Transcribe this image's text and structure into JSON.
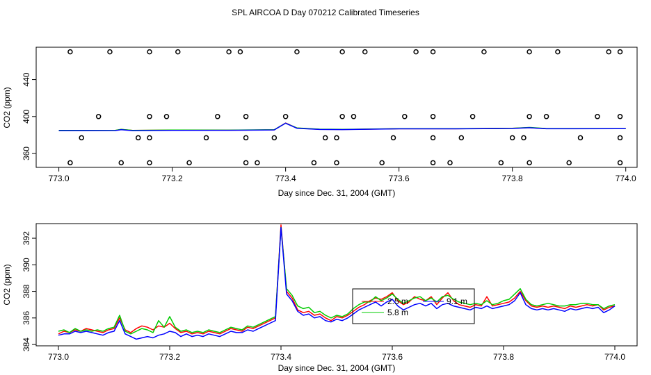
{
  "figure_title": "SPL AIRCOA D  Day 070212  Calibrated Timeseries",
  "colors": {
    "red": "#ff0000",
    "green": "#00cc00",
    "blue": "#0000ff",
    "black": "#000000"
  },
  "chart_data": [
    {
      "type": "scatter",
      "title": "",
      "xlabel": "Day since Dec. 31, 2004 (GMT)",
      "ylabel": "CO2 (ppm)",
      "xlim": [
        772.96,
        774.02
      ],
      "ylim": [
        345,
        475
      ],
      "xticks": [
        "773.0",
        "773.2",
        "773.4",
        "773.6",
        "773.8",
        "774.0"
      ],
      "yticks": [
        "360",
        "400",
        "440"
      ],
      "grid": false,
      "markers": {
        "name": "",
        "x": [
          773.02,
          773.09,
          773.16,
          773.21,
          773.3,
          773.32,
          773.42,
          773.5,
          773.54,
          773.63,
          773.66,
          773.75,
          773.83,
          773.88,
          773.97,
          773.99,
          773.07,
          773.16,
          773.19,
          773.28,
          773.33,
          773.4,
          773.5,
          773.52,
          773.61,
          773.66,
          773.73,
          773.83,
          773.86,
          773.95,
          773.99,
          773.04,
          773.14,
          773.16,
          773.26,
          773.33,
          773.38,
          773.47,
          773.49,
          773.59,
          773.66,
          773.71,
          773.8,
          773.82,
          773.92,
          773.99,
          773.02,
          773.11,
          773.16,
          773.23,
          773.33,
          773.35,
          773.45,
          773.49,
          773.57,
          773.66,
          773.69,
          773.78,
          773.83,
          773.9,
          773.99
        ],
        "y": [
          470,
          470,
          470,
          470,
          470,
          470,
          470,
          470,
          470,
          470,
          470,
          470,
          470,
          470,
          470,
          470,
          400,
          400,
          400,
          400,
          400,
          400,
          400,
          400,
          400,
          400,
          400,
          400,
          400,
          400,
          400,
          377,
          377,
          377,
          377,
          377,
          377,
          377,
          377,
          377,
          377,
          377,
          377,
          377,
          377,
          377,
          350,
          350,
          350,
          350,
          350,
          350,
          350,
          350,
          350,
          350,
          350,
          350,
          350,
          350,
          350
        ]
      },
      "series": [
        {
          "color": "#ff0000",
          "x": [
            773.0,
            773.1,
            773.11,
            773.13,
            773.2,
            773.3,
            773.38,
            773.4,
            773.42,
            773.46,
            773.5,
            773.6,
            773.7,
            773.8,
            773.83,
            773.86,
            773.9,
            774.0
          ],
          "values": [
            384.8,
            385.0,
            386.0,
            385.0,
            385.3,
            385.2,
            385.6,
            393.0,
            387.5,
            386.2,
            386.0,
            386.8,
            386.8,
            387.2,
            388.0,
            386.9,
            386.9,
            386.9
          ]
        },
        {
          "color": "#00cc00",
          "x": [
            773.0,
            773.1,
            773.11,
            773.13,
            773.2,
            773.3,
            773.38,
            773.4,
            773.42,
            773.46,
            773.5,
            773.6,
            773.7,
            773.8,
            773.83,
            773.86,
            773.9,
            774.0
          ],
          "values": [
            385.0,
            385.1,
            386.2,
            385.0,
            385.4,
            385.3,
            385.7,
            392.8,
            387.7,
            386.3,
            386.1,
            386.9,
            386.9,
            387.3,
            388.2,
            387.0,
            387.0,
            387.0
          ]
        },
        {
          "color": "#0000ff",
          "x": [
            773.0,
            773.1,
            773.11,
            773.13,
            773.2,
            773.3,
            773.38,
            773.4,
            773.42,
            773.46,
            773.5,
            773.6,
            773.7,
            773.8,
            773.83,
            773.86,
            773.9,
            774.0
          ],
          "values": [
            384.7,
            384.8,
            385.8,
            384.6,
            385.0,
            385.1,
            385.5,
            392.8,
            387.3,
            386.0,
            385.9,
            386.7,
            386.7,
            387.1,
            387.9,
            386.8,
            386.8,
            386.9
          ]
        }
      ]
    },
    {
      "type": "line",
      "title": "",
      "xlabel": "Day since Dec. 31, 2004 (GMT)",
      "ylabel": "CO2 (ppm)",
      "xlim": [
        772.96,
        774.04
      ],
      "ylim": [
        383.9,
        393.1
      ],
      "xticks": [
        "773.0",
        "773.2",
        "773.4",
        "773.6",
        "773.8",
        "774.0"
      ],
      "yticks": [
        "384",
        "386",
        "388",
        "390",
        "392"
      ],
      "grid": false,
      "legend": {
        "position": "center-right",
        "labels": [
          "2.5 m",
          "5.8 m",
          "9.1 m"
        ]
      },
      "x": [
        773.0,
        773.01,
        773.02,
        773.03,
        773.04,
        773.05,
        773.06,
        773.07,
        773.08,
        773.09,
        773.1,
        773.11,
        773.12,
        773.13,
        773.14,
        773.15,
        773.16,
        773.17,
        773.18,
        773.19,
        773.2,
        773.21,
        773.22,
        773.23,
        773.24,
        773.25,
        773.26,
        773.27,
        773.28,
        773.29,
        773.3,
        773.31,
        773.32,
        773.33,
        773.34,
        773.35,
        773.36,
        773.37,
        773.38,
        773.39,
        773.4,
        773.41,
        773.42,
        773.43,
        773.44,
        773.45,
        773.46,
        773.47,
        773.48,
        773.49,
        773.5,
        773.51,
        773.52,
        773.53,
        773.54,
        773.55,
        773.56,
        773.57,
        773.58,
        773.59,
        773.6,
        773.61,
        773.62,
        773.63,
        773.64,
        773.65,
        773.66,
        773.67,
        773.68,
        773.69,
        773.7,
        773.71,
        773.72,
        773.73,
        773.74,
        773.75,
        773.76,
        773.77,
        773.78,
        773.79,
        773.8,
        773.81,
        773.82,
        773.83,
        773.84,
        773.85,
        773.86,
        773.87,
        773.88,
        773.89,
        773.9,
        773.91,
        773.92,
        773.93,
        773.94,
        773.95,
        773.96,
        773.97,
        773.98,
        773.99,
        774.0
      ],
      "series": [
        {
          "name": "2.5 m",
          "color": "#ff0000",
          "values": [
            384.8,
            385.0,
            384.9,
            385.1,
            385.0,
            385.2,
            385.1,
            385.0,
            384.9,
            385.1,
            385.2,
            386.0,
            385.1,
            384.9,
            385.2,
            385.4,
            385.3,
            385.1,
            385.4,
            385.3,
            385.6,
            385.2,
            384.9,
            385.0,
            384.8,
            384.9,
            384.8,
            385.0,
            384.9,
            384.8,
            385.0,
            385.2,
            385.1,
            385.0,
            385.3,
            385.2,
            385.4,
            385.6,
            385.8,
            386.0,
            393.0,
            388.0,
            387.5,
            386.6,
            386.4,
            386.5,
            386.2,
            386.3,
            386.0,
            385.8,
            386.1,
            386.0,
            386.2,
            386.5,
            386.8,
            387.0,
            387.3,
            387.5,
            387.4,
            387.6,
            387.9,
            387.3,
            387.0,
            387.2,
            387.6,
            387.4,
            387.3,
            387.6,
            387.0,
            387.5,
            387.9,
            387.3,
            387.0,
            386.9,
            386.8,
            387.0,
            386.9,
            387.6,
            386.9,
            387.0,
            387.1,
            387.2,
            387.5,
            388.0,
            387.3,
            386.9,
            386.8,
            386.9,
            386.8,
            386.9,
            386.8,
            386.7,
            386.9,
            386.8,
            386.9,
            387.0,
            386.9,
            387.0,
            386.6,
            386.8,
            386.9
          ]
        },
        {
          "name": "5.8 m",
          "color": "#00cc00",
          "values": [
            385.0,
            385.1,
            384.9,
            385.2,
            385.0,
            385.1,
            385.0,
            385.1,
            385.0,
            385.2,
            385.3,
            386.2,
            385.0,
            384.8,
            385.0,
            385.2,
            385.1,
            384.9,
            385.8,
            385.3,
            386.1,
            385.3,
            385.0,
            385.1,
            384.9,
            385.0,
            384.9,
            385.1,
            385.0,
            384.9,
            385.1,
            385.3,
            385.2,
            385.1,
            385.4,
            385.3,
            385.5,
            385.7,
            385.9,
            386.1,
            392.8,
            388.2,
            387.7,
            386.9,
            386.7,
            386.8,
            386.4,
            386.5,
            386.2,
            386.0,
            386.2,
            386.1,
            386.3,
            386.7,
            387.0,
            387.2,
            387.2,
            387.6,
            387.3,
            387.5,
            387.8,
            387.4,
            387.1,
            387.3,
            387.5,
            387.6,
            387.3,
            387.5,
            387.2,
            387.6,
            387.7,
            387.4,
            387.2,
            387.1,
            387.0,
            387.1,
            387.0,
            387.3,
            387.0,
            387.1,
            387.3,
            387.4,
            387.8,
            388.2,
            387.4,
            387.0,
            386.9,
            387.0,
            387.1,
            387.0,
            386.9,
            386.9,
            387.0,
            387.0,
            387.1,
            387.1,
            387.0,
            387.0,
            386.7,
            386.9,
            387.0
          ]
        },
        {
          "name": "9.1 m",
          "color": "#0000ff",
          "values": [
            384.7,
            384.8,
            384.8,
            385.0,
            384.9,
            385.0,
            384.9,
            384.8,
            384.7,
            384.9,
            385.0,
            385.8,
            384.8,
            384.6,
            384.4,
            384.5,
            384.6,
            384.5,
            384.7,
            384.8,
            385.0,
            384.9,
            384.6,
            384.8,
            384.6,
            384.7,
            384.6,
            384.8,
            384.7,
            384.6,
            384.8,
            385.0,
            384.9,
            384.9,
            385.1,
            385.0,
            385.2,
            385.4,
            385.6,
            385.8,
            392.8,
            387.8,
            387.3,
            386.5,
            386.2,
            386.3,
            386.0,
            386.1,
            385.8,
            385.7,
            385.9,
            385.8,
            386.0,
            386.3,
            386.6,
            386.8,
            387.0,
            387.2,
            386.9,
            387.2,
            387.4,
            386.9,
            386.6,
            386.8,
            387.0,
            387.1,
            386.9,
            387.1,
            386.7,
            387.0,
            387.1,
            386.9,
            386.8,
            386.7,
            386.6,
            386.8,
            386.7,
            386.9,
            386.7,
            386.8,
            386.9,
            387.0,
            387.3,
            387.9,
            387.0,
            386.7,
            386.6,
            386.7,
            386.6,
            386.7,
            386.6,
            386.5,
            386.7,
            386.6,
            386.7,
            386.8,
            386.7,
            386.8,
            386.4,
            386.6,
            386.9
          ]
        }
      ]
    }
  ]
}
